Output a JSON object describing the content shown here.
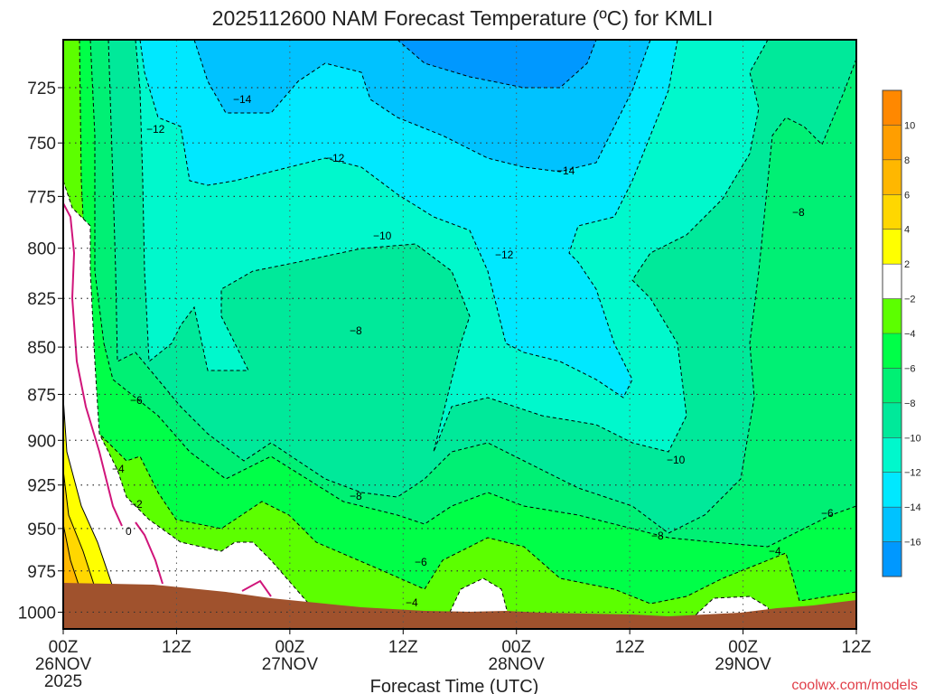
{
  "chart_data": {
    "type": "contour",
    "title": "2025112600 NAM Forecast Temperature (ºC) for KMLI",
    "xlabel": "Forecast Time (UTC)",
    "ylabel": "",
    "y_axis": {
      "scale": "log",
      "unit": "hPa",
      "ticks": [
        725,
        750,
        775,
        800,
        825,
        850,
        875,
        900,
        925,
        950,
        975,
        1000
      ],
      "range": [
        704,
        1012
      ]
    },
    "x_axis": {
      "unit": "hours",
      "range": [
        0,
        84
      ],
      "ticks": [
        {
          "hour": 0,
          "label": "00Z",
          "sub": "26NOV",
          "sub2": "2025"
        },
        {
          "hour": 12,
          "label": "12Z"
        },
        {
          "hour": 24,
          "label": "00Z",
          "sub": "27NOV"
        },
        {
          "hour": 36,
          "label": "12Z"
        },
        {
          "hour": 48,
          "label": "00Z",
          "sub": "28NOV"
        },
        {
          "hour": 60,
          "label": "12Z"
        },
        {
          "hour": 72,
          "label": "00Z",
          "sub": "29NOV"
        },
        {
          "hour": 84,
          "label": "12Z"
        }
      ]
    },
    "legend": {
      "placement": "right",
      "labels": [
        "10",
        "8",
        "6",
        "4",
        "2",
        "-2",
        "-4",
        "-6",
        "-8",
        "-10",
        "-12",
        "-14",
        "-16"
      ],
      "colors": [
        "#ff8800",
        "#ff9e00",
        "#ffb700",
        "#ffd700",
        "#ffff00",
        "#ffffff",
        "#5cff00",
        "#00ff48",
        "#00f074",
        "#00e99a",
        "#00f8cc",
        "#00e8ff",
        "#00c2ff",
        "#0098ff"
      ]
    },
    "contour_labels": [
      "-14",
      "-12",
      "-12",
      "-10",
      "-12",
      "-14",
      "-8",
      "-8",
      "-6",
      "-4",
      "-2",
      "0",
      "-8",
      "-6",
      "-4",
      "-10",
      "-8",
      "-4",
      "-6"
    ],
    "ground_color": "#a0522d",
    "freezing_line_color": "#d0157a"
  },
  "watermark": "coolwx.com/models"
}
